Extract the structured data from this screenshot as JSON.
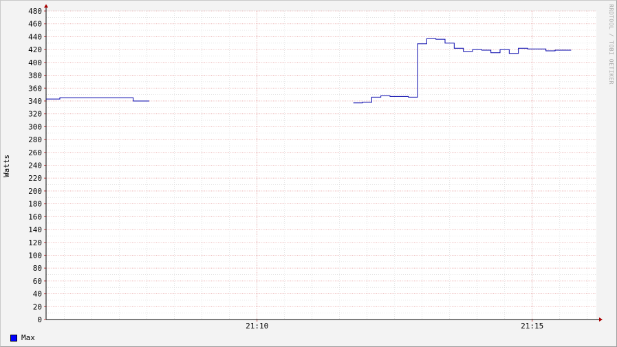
{
  "chart_data": {
    "type": "line",
    "ylabel": "Watts",
    "xlabel": "",
    "title": "",
    "ylim": [
      0,
      480
    ],
    "y_ticks": [
      0,
      20,
      40,
      60,
      80,
      100,
      120,
      140,
      160,
      180,
      200,
      220,
      240,
      260,
      280,
      300,
      320,
      340,
      360,
      380,
      400,
      420,
      440,
      460,
      480
    ],
    "xlim": [
      "21:06:10",
      "21:16:10"
    ],
    "x_tick_labels": [
      {
        "time": "21:10:00",
        "label": "21:10"
      },
      {
        "time": "21:15:00",
        "label": "21:15"
      }
    ],
    "x_major_grid_minutes": [
      "21:10:00",
      "21:15:00"
    ],
    "grid": true,
    "legend_position": "bottom-left",
    "series": [
      {
        "name": "Max",
        "color": "#0000aa",
        "swatch_color": "#0000ff",
        "segments": [
          [
            [
              "21:06:10",
              343
            ],
            [
              "21:06:25",
              345
            ],
            [
              "21:07:45",
              340
            ],
            [
              "21:07:55",
              340
            ]
          ],
          [
            [
              "21:11:45",
              337
            ],
            [
              "21:11:55",
              338
            ],
            [
              "21:12:05",
              346
            ],
            [
              "21:12:15",
              348
            ],
            [
              "21:12:25",
              347
            ],
            [
              "21:12:45",
              346
            ],
            [
              "21:12:55",
              429
            ],
            [
              "21:13:05",
              437
            ],
            [
              "21:13:15",
              436
            ],
            [
              "21:13:25",
              430
            ],
            [
              "21:13:35",
              422
            ],
            [
              "21:13:45",
              417
            ],
            [
              "21:13:55",
              420
            ],
            [
              "21:14:05",
              419
            ],
            [
              "21:14:15",
              415
            ],
            [
              "21:14:25",
              420
            ],
            [
              "21:14:35",
              414
            ],
            [
              "21:14:45",
              422
            ],
            [
              "21:14:55",
              421
            ],
            [
              "21:15:15",
              418
            ],
            [
              "21:15:25",
              419
            ],
            [
              "21:15:35",
              419
            ]
          ]
        ]
      }
    ]
  },
  "legend": {
    "label": "Max"
  },
  "watermark": "RRDTOOL / TOBI OETIKER"
}
